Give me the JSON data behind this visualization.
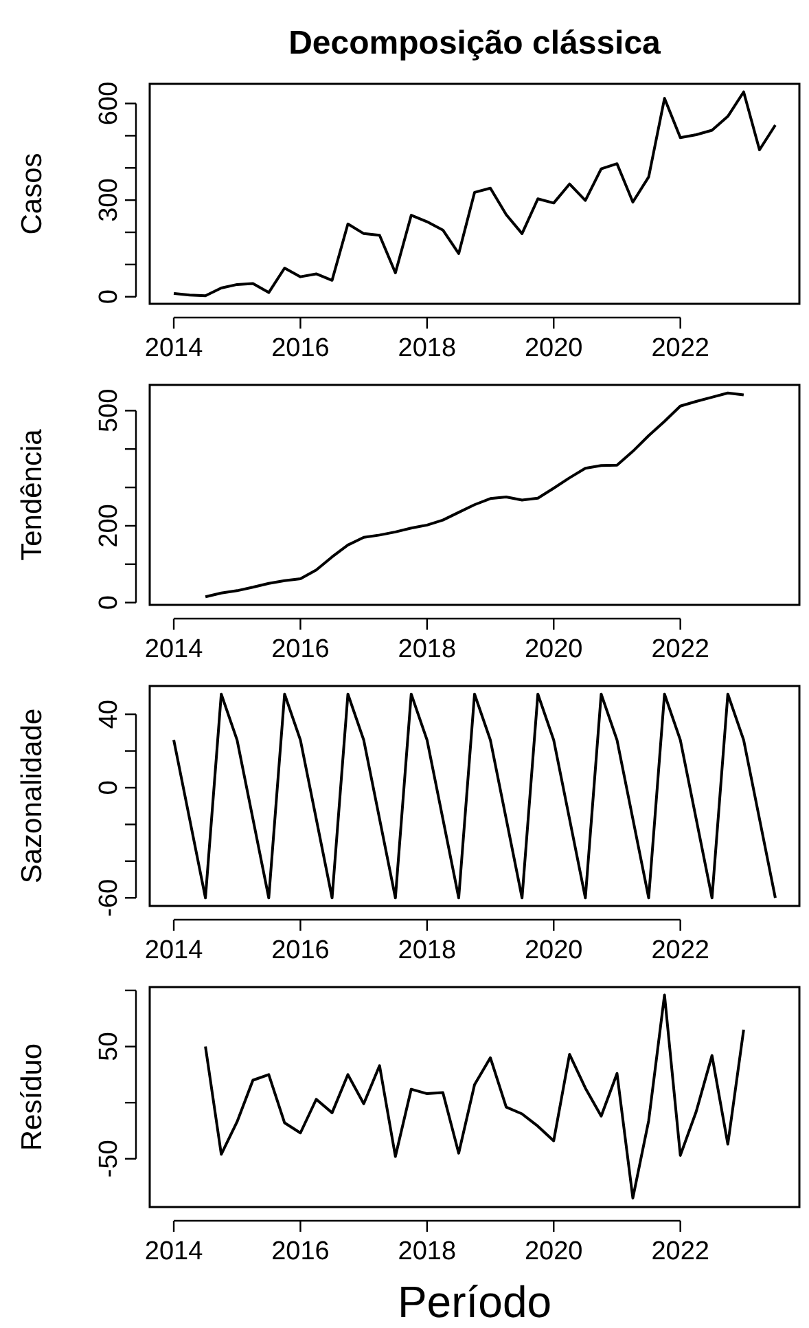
{
  "chart_data": [
    {
      "type": "line",
      "title": "Decomposição clássica",
      "ylabel": "Casos",
      "color": "#000000",
      "x": [
        2014,
        2014.25,
        2014.5,
        2014.75,
        2015,
        2015.25,
        2015.5,
        2015.75,
        2016,
        2016.25,
        2016.5,
        2016.75,
        2017,
        2017.25,
        2017.5,
        2017.75,
        2018,
        2018.25,
        2018.5,
        2018.75,
        2019,
        2019.25,
        2019.5,
        2019.75,
        2020,
        2020.25,
        2020.5,
        2020.75,
        2021,
        2021.25,
        2021.5,
        2021.75,
        2022,
        2022.25,
        2022.5,
        2022.75,
        2023,
        2023.25,
        2023.5
      ],
      "values": [
        10,
        5,
        3,
        27,
        38,
        41,
        13,
        89,
        62,
        71,
        51,
        226,
        196,
        191,
        74,
        253,
        233,
        207,
        134,
        324,
        337,
        255,
        196,
        304,
        291,
        350,
        299,
        397,
        413,
        294,
        372,
        616,
        494,
        503,
        517,
        560,
        636,
        456,
        533
      ],
      "xlim": [
        2013.62,
        2023.88
      ],
      "xticks": [
        2014,
        2016,
        2018,
        2020,
        2022
      ],
      "ylim": [
        -22,
        661
      ],
      "yticks": [
        0,
        {
          "value": 100,
          "label": null
        },
        {
          "value": 200,
          "label": null
        },
        300,
        {
          "value": 400,
          "label": null
        },
        {
          "value": 500,
          "label": null
        },
        600
      ]
    },
    {
      "type": "line",
      "ylabel": "Tendência",
      "color": "#000000",
      "x": [
        2014.5,
        2014.75,
        2015,
        2015.25,
        2015.5,
        2015.75,
        2016,
        2016.25,
        2016.5,
        2016.75,
        2017,
        2017.25,
        2017.5,
        2017.75,
        2018,
        2018.25,
        2018.5,
        2018.75,
        2019,
        2019.25,
        2019.5,
        2019.75,
        2020,
        2020.25,
        2020.5,
        2020.75,
        2021,
        2021.25,
        2021.5,
        2021.75,
        2022,
        2022.25,
        2022.5,
        2022.75,
        2023
      ],
      "values": [
        15,
        25,
        31,
        40,
        50,
        57,
        62,
        85,
        119,
        150,
        170,
        176,
        184,
        194,
        202,
        215,
        235,
        255,
        271,
        275,
        267,
        272,
        298,
        325,
        350,
        357,
        358,
        394,
        435,
        472,
        512,
        524,
        535,
        546,
        541
      ],
      "xlim": [
        2013.62,
        2023.88
      ],
      "xticks": [
        2014,
        2016,
        2018,
        2020,
        2022
      ],
      "ylim": [
        -6,
        567
      ],
      "yticks": [
        0,
        {
          "value": 100,
          "label": null
        },
        200,
        {
          "value": 300,
          "label": null
        },
        {
          "value": 400,
          "label": null
        },
        500
      ]
    },
    {
      "type": "line",
      "ylabel": "Sazonalidade",
      "color": "#000000",
      "x": [
        2014,
        2014.25,
        2014.5,
        2014.75,
        2015,
        2015.25,
        2015.5,
        2015.75,
        2016,
        2016.25,
        2016.5,
        2016.75,
        2017,
        2017.25,
        2017.5,
        2017.75,
        2018,
        2018.25,
        2018.5,
        2018.75,
        2019,
        2019.25,
        2019.5,
        2019.75,
        2020,
        2020.25,
        2020.5,
        2020.75,
        2021,
        2021.25,
        2021.5,
        2021.75,
        2022,
        2022.25,
        2022.5,
        2022.75,
        2023,
        2023.25,
        2023.5
      ],
      "values": [
        26,
        -17,
        -60,
        51,
        26,
        -17,
        -60,
        51,
        26,
        -17,
        -60,
        51,
        26,
        -17,
        -60,
        51,
        26,
        -17,
        -60,
        51,
        26,
        -17,
        -60,
        51,
        26,
        -17,
        -60,
        51,
        26,
        -17,
        -60,
        51,
        26,
        -17,
        -60,
        51,
        26,
        -17,
        -60
      ],
      "xlim": [
        2013.62,
        2023.88
      ],
      "xticks": [
        2014,
        2016,
        2018,
        2020,
        2022
      ],
      "ylim": [
        -64.4,
        55.4
      ],
      "yticks": [
        -60,
        {
          "value": -40,
          "label": null
        },
        {
          "value": -20,
          "label": null
        },
        0,
        {
          "value": 20,
          "label": null
        },
        40
      ]
    },
    {
      "type": "line",
      "ylabel": "Resíduo",
      "xlabel": "Período",
      "color": "#000000",
      "x": [
        2014.5,
        2014.75,
        2015,
        2015.25,
        2015.5,
        2015.75,
        2016,
        2016.25,
        2016.5,
        2016.75,
        2017,
        2017.25,
        2017.5,
        2017.75,
        2018,
        2018.25,
        2018.5,
        2018.75,
        2019,
        2019.25,
        2019.5,
        2019.75,
        2020,
        2020.25,
        2020.5,
        2020.75,
        2021,
        2021.25,
        2021.5,
        2021.75,
        2022,
        2022.25,
        2022.5,
        2022.75,
        2023
      ],
      "values": [
        50,
        -46,
        -17,
        20,
        25,
        -18,
        -27,
        3,
        -9,
        25,
        -1,
        33,
        -48,
        12,
        8,
        9,
        -45,
        16,
        40,
        -4,
        -10,
        -21,
        -34,
        43,
        13,
        -12,
        26,
        -85,
        -16,
        96,
        -47,
        -8,
        42,
        -37,
        65
      ],
      "xlim": [
        2013.62,
        2023.88
      ],
      "xticks": [
        2014,
        2016,
        2018,
        2020,
        2022
      ],
      "ylim": [
        -93,
        103
      ],
      "yticks": [
        -50,
        {
          "value": 0,
          "label": null
        },
        50,
        {
          "value": 100,
          "label": null
        }
      ]
    }
  ]
}
